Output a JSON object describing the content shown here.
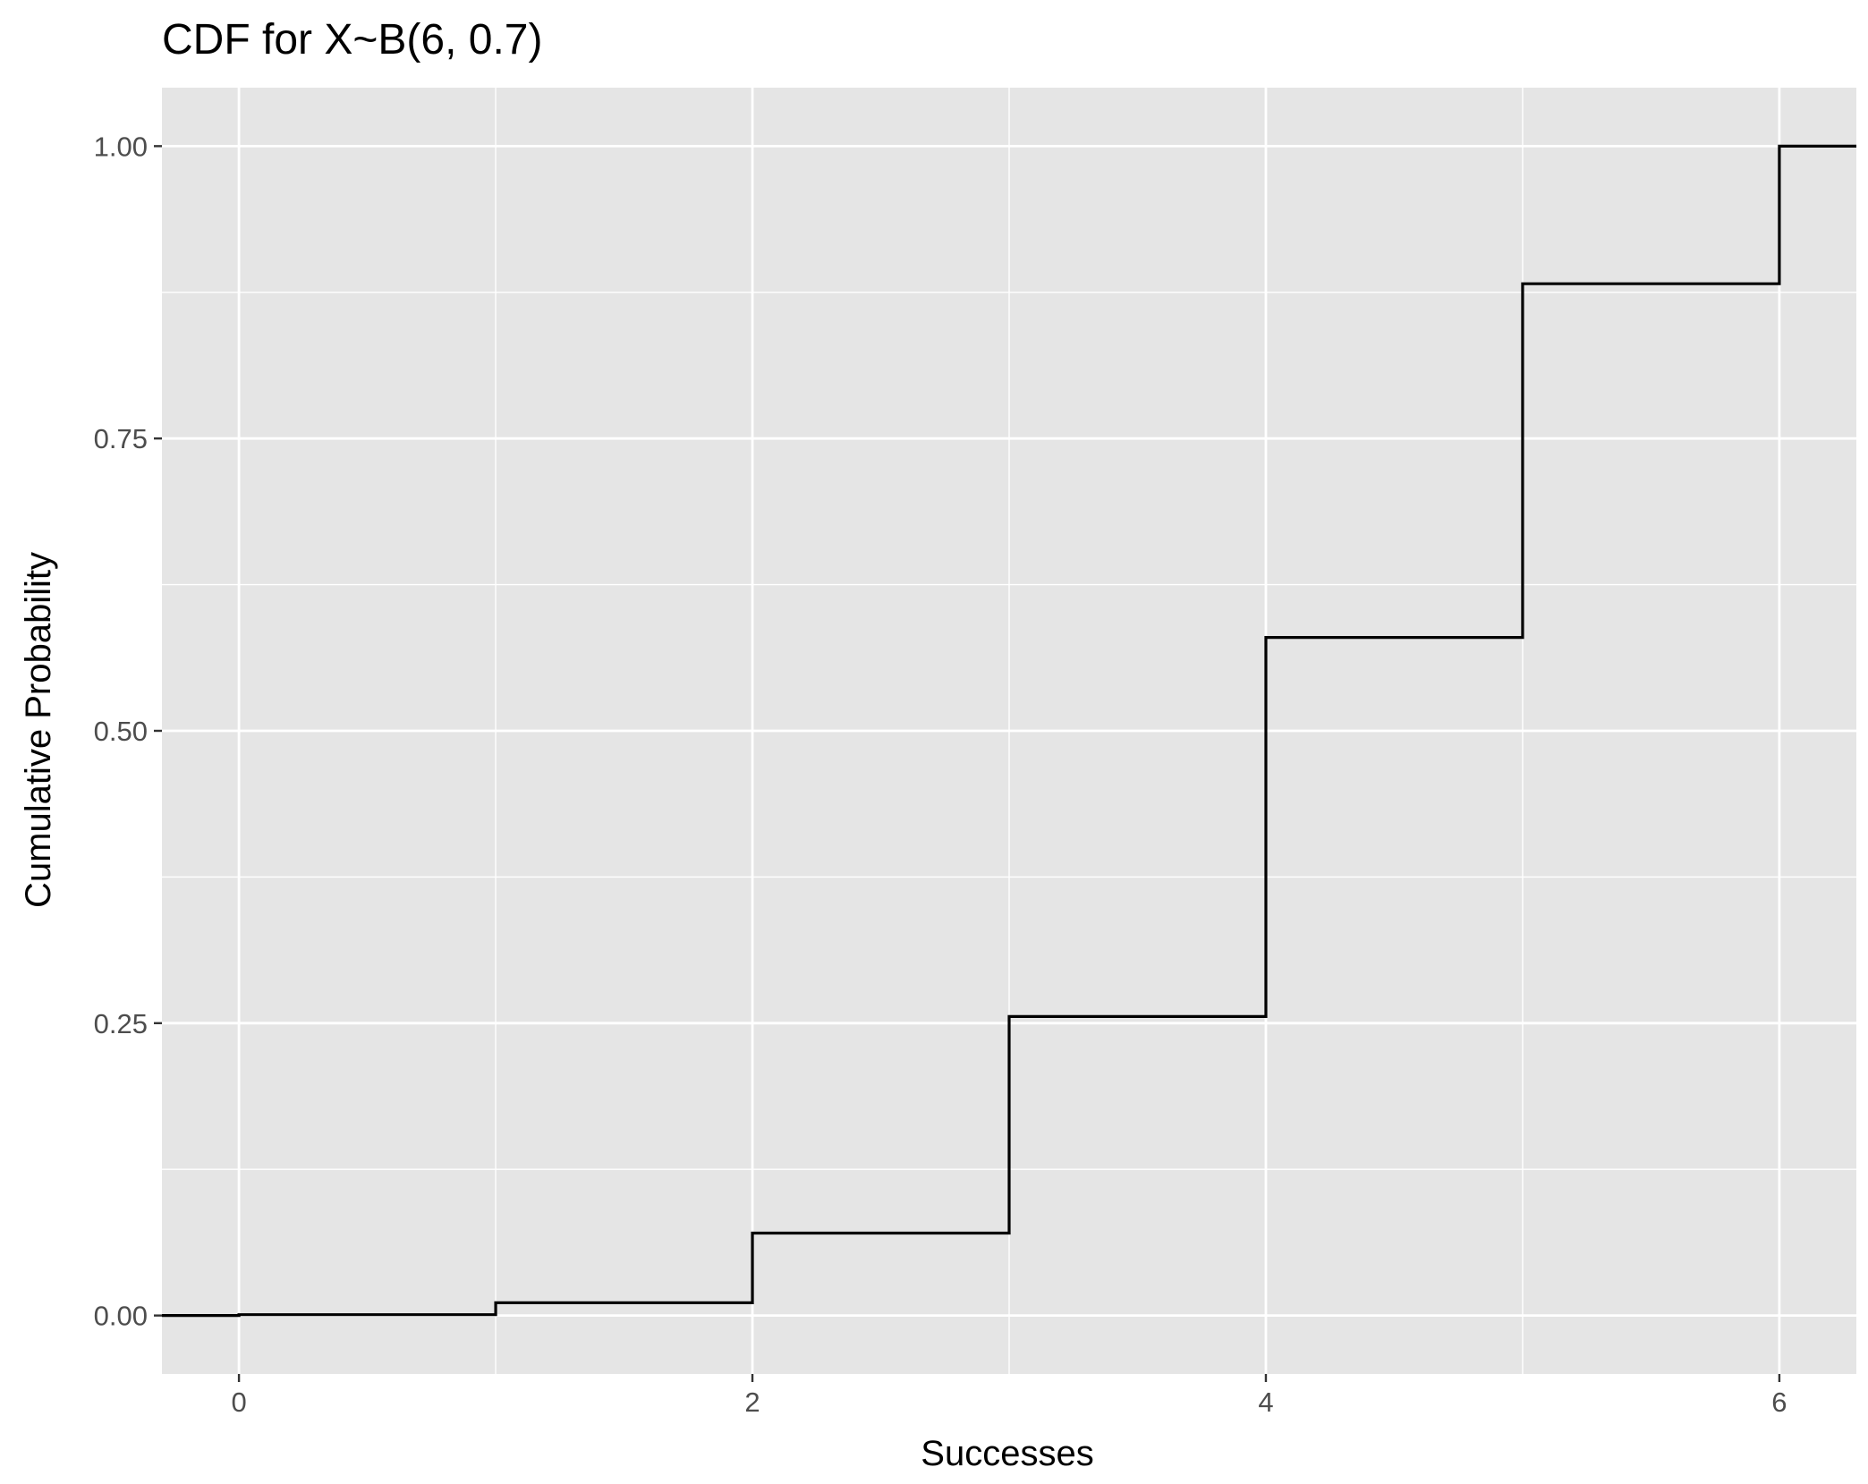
{
  "chart_data": {
    "type": "line",
    "step": true,
    "title": "CDF for X~B(6, 0.7)",
    "xlabel": "Successes",
    "ylabel": "Cumulative Probability",
    "x": [
      0,
      1,
      2,
      3,
      4,
      5,
      6
    ],
    "y": [
      0.000729,
      0.010935,
      0.07047,
      0.25569,
      0.579825,
      0.882351,
      1.0
    ],
    "xlim": [
      -0.3,
      6.3
    ],
    "ylim": [
      -0.05,
      1.05
    ],
    "x_ticks": [
      "0",
      "2",
      "4",
      "6"
    ],
    "y_ticks": [
      "0.00",
      "0.25",
      "0.50",
      "0.75",
      "1.00"
    ],
    "grid": true,
    "colors": {
      "panel": "#e5e5e5",
      "grid": "#ffffff",
      "line": "#000000",
      "tick_text": "#4d4d4d"
    }
  }
}
